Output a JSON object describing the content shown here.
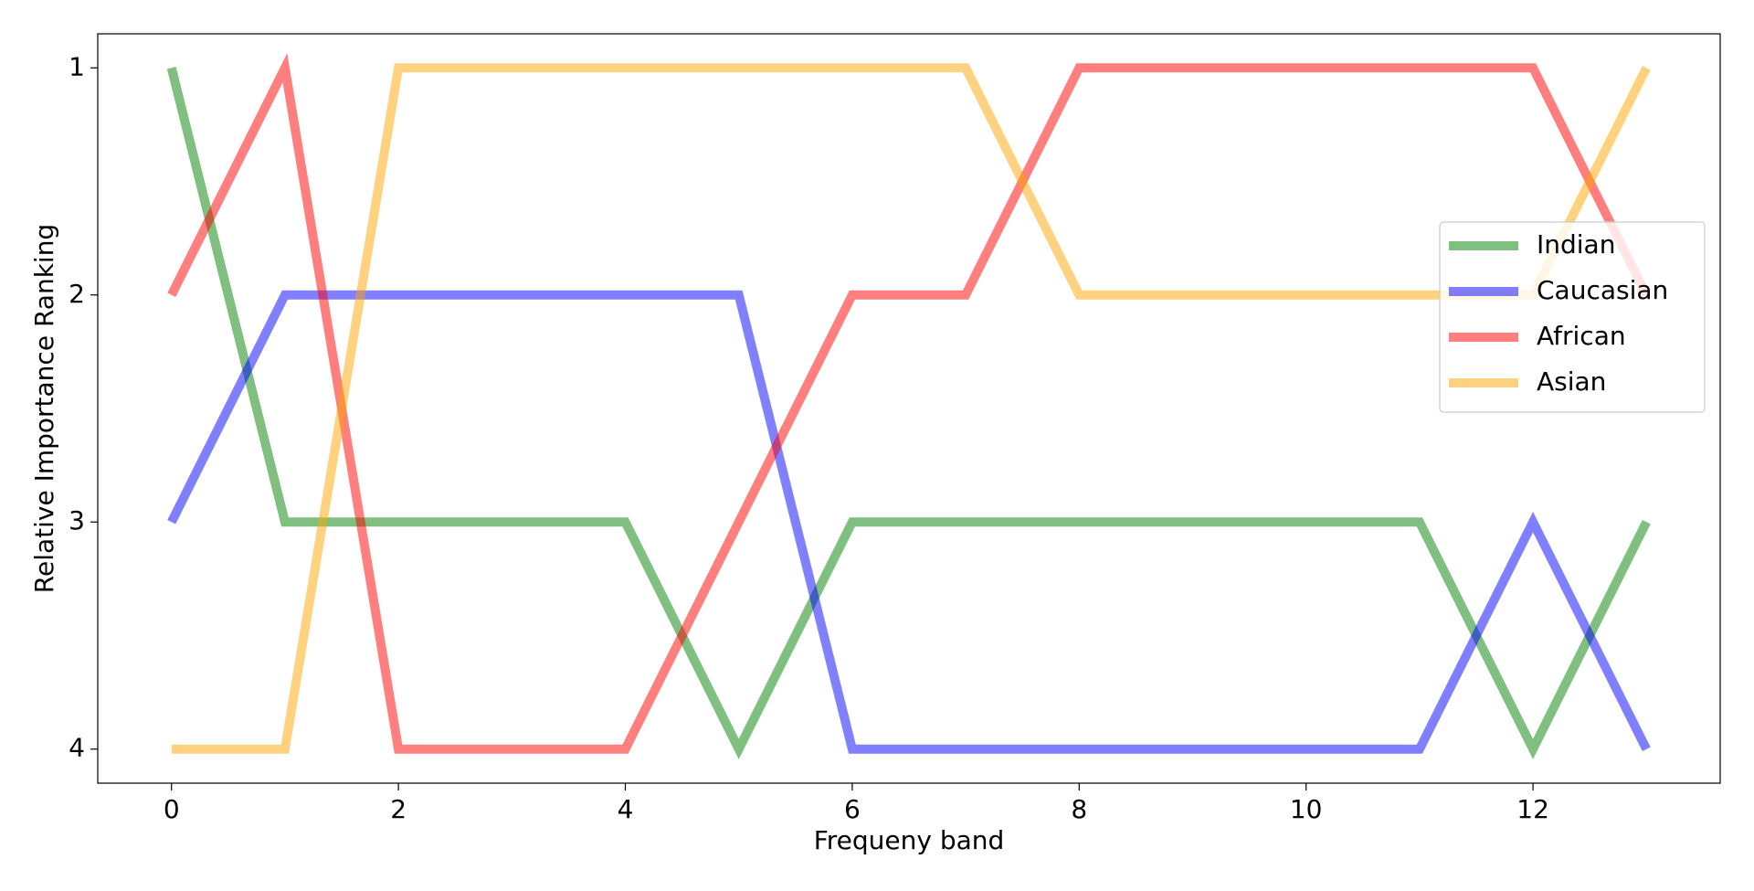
{
  "chart_data": {
    "type": "line",
    "x_label": "Frequeny band",
    "y_label": "Relative Importance Ranking",
    "x": [
      0,
      1,
      2,
      3,
      4,
      5,
      6,
      7,
      8,
      9,
      10,
      11,
      12,
      13
    ],
    "series": [
      {
        "name": "Indian",
        "color": "#008000",
        "values": [
          1,
          3,
          3,
          3,
          3,
          4,
          3,
          3,
          3,
          3,
          3,
          3,
          4,
          3
        ]
      },
      {
        "name": "Caucasian",
        "color": "#0000ff",
        "values": [
          3,
          2,
          2,
          2,
          2,
          2,
          4,
          4,
          4,
          4,
          4,
          4,
          3,
          4
        ]
      },
      {
        "name": "African",
        "color": "#ff0000",
        "values": [
          2,
          1,
          4,
          4,
          4,
          3,
          2,
          2,
          1,
          1,
          1,
          1,
          1,
          2
        ]
      },
      {
        "name": "Asian",
        "color": "#ffa500",
        "values": [
          4,
          4,
          1,
          1,
          1,
          1,
          1,
          1,
          2,
          2,
          2,
          2,
          2,
          1
        ]
      }
    ],
    "xlim": [
      -0.65,
      13.65
    ],
    "ylim": [
      4.15,
      0.85
    ],
    "xticks": [
      0,
      2,
      4,
      6,
      8,
      10,
      12
    ],
    "yticks": [
      1,
      2,
      3,
      4
    ],
    "opacity": 0.5,
    "legend": "center right"
  }
}
